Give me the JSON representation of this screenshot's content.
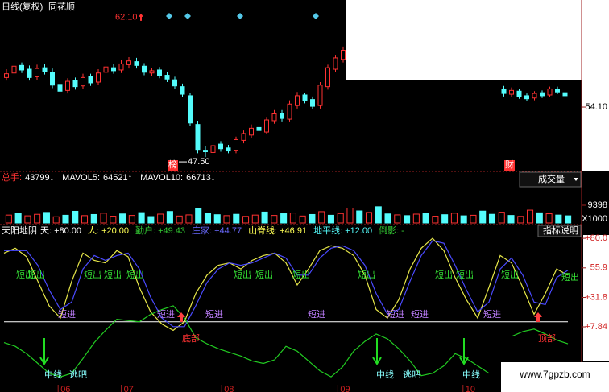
{
  "chart_data": [
    {
      "type": "candlestick",
      "title": "日线(复权)",
      "source": "同花顺",
      "x": [
        0,
        1,
        2,
        3,
        4,
        5,
        6,
        7,
        8,
        9,
        10,
        11,
        12,
        13,
        14,
        15,
        16,
        17,
        18,
        19,
        20,
        21,
        22,
        23,
        24,
        25,
        26,
        27,
        28,
        29,
        30,
        31,
        32,
        33,
        34,
        35,
        36,
        37,
        38,
        39,
        40,
        41,
        42,
        43,
        44,
        65,
        66,
        67,
        68,
        69,
        70,
        71,
        72,
        73
      ],
      "open": [
        58,
        58.6,
        59.6,
        59.1,
        58.1,
        59.3,
        58.7,
        57.1,
        56.3,
        57.6,
        56.9,
        58.1,
        57.4,
        58.7,
        59.3,
        59,
        59.7,
        60.1,
        59.5,
        58.6,
        59,
        58.3,
        57.7,
        56.8,
        55.6,
        51.8,
        48.4,
        48.1,
        49.2,
        48.7,
        48.4,
        49.7,
        50.4,
        51.4,
        50.8,
        52.3,
        53.3,
        52.5,
        54.3,
        55.7,
        55.1,
        54.3,
        56.8,
        59.1,
        60.4,
        56.5,
        55.8,
        56.2,
        55.6,
        55.3,
        56.0,
        55.7,
        56.4,
        56.0
      ],
      "close": [
        58.5,
        59.5,
        59,
        58,
        59.2,
        58.8,
        57,
        56.2,
        57.5,
        56.8,
        58,
        57.3,
        58.6,
        59.4,
        58.9,
        59.8,
        60.2,
        59.6,
        58.7,
        58.9,
        58.2,
        57.8,
        56.9,
        55.8,
        52,
        48.5,
        48.2,
        49,
        48.6,
        48.3,
        49.8,
        50.6,
        51.3,
        51,
        52.4,
        53.2,
        52.6,
        54.5,
        55.6,
        55,
        54.2,
        57,
        59.3,
        60.6,
        61.6,
        55.9,
        56.3,
        55.5,
        55.2,
        55.9,
        55.6,
        56.5,
        56.1,
        55.6
      ],
      "high": [
        59.1,
        60.1,
        60.0,
        59.6,
        59.7,
        59.8,
        59.2,
        57.6,
        57.9,
        58.0,
        58.5,
        58.5,
        59.1,
        59.9,
        59.8,
        60.3,
        60.7,
        60.6,
        59.9,
        59.3,
        59.4,
        58.7,
        58.1,
        57.2,
        56.0,
        52.3,
        49.0,
        49.5,
        49.6,
        49.1,
        50.2,
        51.0,
        51.8,
        51.8,
        52.8,
        53.7,
        53.7,
        55.0,
        56.1,
        56.0,
        55.5,
        57.4,
        59.7,
        61.0,
        62.1,
        56.9,
        56.7,
        56.5,
        55.9,
        56.2,
        56.3,
        56.8,
        56.8,
        56.3
      ],
      "low": [
        57.6,
        58.2,
        58.6,
        57.6,
        57.7,
        58.4,
        56.6,
        55.8,
        55.9,
        56.4,
        56.5,
        56.9,
        57.0,
        58.3,
        58.5,
        58.6,
        59.2,
        59.2,
        58.3,
        58.2,
        57.9,
        57.4,
        56.5,
        55.4,
        51.6,
        48.0,
        47.5,
        47.8,
        48.2,
        48.0,
        48.0,
        49.3,
        50.0,
        50.6,
        50.5,
        51.9,
        52.2,
        52.2,
        53.9,
        54.6,
        53.8,
        53.9,
        56.4,
        58.7,
        60.0,
        55.5,
        55.5,
        55.2,
        54.9,
        55.0,
        55.3,
        55.4,
        55.8,
        55.3
      ],
      "xlim": [
        0,
        74
      ],
      "ylim": [
        45.7,
        67.4
      ],
      "yticks": [
        {
          "value": 54.1,
          "label": "54.10"
        }
      ],
      "max_label": {
        "value": 62.1,
        "label": "62.10"
      },
      "min_label": {
        "value": 47.5,
        "label": "47.50"
      },
      "markers": [
        "榜",
        "财"
      ],
      "up_color": "#ff3232",
      "down_color": "#54fcfc"
    },
    {
      "type": "bar",
      "header": [
        {
          "label": "总手:",
          "value": "43799↓"
        },
        {
          "label": "MAVOL5:",
          "value": "64521↑"
        },
        {
          "label": "MAVOL10:",
          "value": "66713↓"
        }
      ],
      "selector": "成交量",
      "values": [
        4200,
        5100,
        3800,
        4600,
        5600,
        3300,
        4100,
        6200,
        3900,
        4500,
        5200,
        3600,
        4800,
        4000,
        5500,
        3400,
        4700,
        6100,
        3700,
        4300,
        7600,
        5200,
        4400,
        3900,
        4600,
        3500,
        4200,
        5800,
        4000,
        4900,
        5300,
        3700,
        4500,
        6000,
        4100,
        5000,
        7900,
        6400,
        5600,
        8600,
        4800,
        4300,
        3900,
        4700,
        5100,
        3600,
        4400,
        5200,
        3800,
        4100,
        6300,
        4600,
        5700,
        4000,
        3500,
        6800,
        5400,
        4900,
        4200,
        3800
      ],
      "colors": [
        "#ff3232",
        "#54fcfc",
        "#ff3232",
        "#ff3232",
        "#54fcfc",
        "#ff3232",
        "#54fcfc",
        "#54fcfc",
        "#ff3232",
        "#54fcfc",
        "#ff3232",
        "#ff3232",
        "#54fcfc",
        "#ff3232",
        "#54fcfc",
        "#54fcfc",
        "#ff3232",
        "#54fcfc",
        "#ff3232",
        "#ff3232",
        "#54fcfc",
        "#54fcfc",
        "#54fcfc",
        "#ff3232",
        "#54fcfc",
        "#ff3232",
        "#ff3232",
        "#54fcfc",
        "#ff3232",
        "#54fcfc",
        "#ff3232",
        "#ff3232",
        "#54fcfc",
        "#ff3232",
        "#54fcfc",
        "#ff3232",
        "#ff3232",
        "#54fcfc",
        "#ff3232",
        "#54fcfc",
        "#54fcfc",
        "#ff3232",
        "#54fcfc",
        "#ff3232",
        "#54fcfc",
        "#ff3232",
        "#54fcfc",
        "#ff3232",
        "#54fcfc",
        "#ff3232",
        "#54fcfc",
        "#54fcfc",
        "#ff3232",
        "#54fcfc",
        "#ff3232",
        "#ff3232",
        "#54fcfc",
        "#ff3232",
        "#54fcfc",
        "#54fcfc"
      ],
      "ylim": [
        0,
        15800
      ],
      "yticks": [
        9398
      ],
      "unit_label": "X1000"
    },
    {
      "type": "line",
      "title": "天阳地阴",
      "header": [
        {
          "label": "天:",
          "value": "+80.00",
          "color": "#ffffff"
        },
        {
          "label": "人:",
          "value": "+20.00",
          "color": "#ffff54"
        },
        {
          "label": "勤户:",
          "value": "+49.43",
          "color": "#33cc33"
        },
        {
          "label": "庄家:",
          "value": "+44.77",
          "color": "#6a6aff"
        },
        {
          "label": "山脊线:",
          "value": "+46.91",
          "color": "#ffff54"
        },
        {
          "label": "地平线:",
          "value": "+12.00",
          "color": "#54fcfc"
        },
        {
          "label": "倒影:",
          "value": "-",
          "color": "#33cc33"
        }
      ],
      "button": "指标说明",
      "x": [
        0,
        1,
        2,
        3,
        4,
        5,
        6,
        7,
        8,
        9,
        10,
        11,
        12,
        13,
        14,
        15,
        16,
        17,
        18,
        19,
        20,
        21,
        22,
        23,
        24,
        25,
        26,
        27,
        28,
        29,
        30,
        31,
        32,
        33,
        34,
        35,
        36,
        37,
        38,
        39,
        40,
        41,
        42,
        43,
        44,
        45,
        46,
        47,
        48,
        49,
        50
      ],
      "series": [
        {
          "color": "#e8e84a",
          "values": [
            68,
            72,
            65,
            45,
            25,
            15,
            45,
            68,
            62,
            60,
            70,
            65,
            40,
            20,
            10,
            5,
            12,
            35,
            50,
            58,
            60,
            55,
            62,
            66,
            68,
            60,
            42,
            55,
            70,
            74,
            72,
            66,
            50,
            22,
            15,
            30,
            55,
            72,
            80,
            70,
            48,
            30,
            15,
            40,
            66,
            60,
            40,
            18,
            35,
            55,
            50
          ]
        },
        {
          "color": "#4a4aff",
          "values": [
            70,
            70,
            70,
            58,
            38,
            22,
            28,
            55,
            66,
            62,
            66,
            68,
            55,
            32,
            15,
            8,
            8,
            25,
            44,
            55,
            60,
            58,
            60,
            64,
            68,
            64,
            50,
            50,
            64,
            72,
            74,
            70,
            58,
            35,
            18,
            22,
            45,
            66,
            78,
            76,
            58,
            38,
            20,
            28,
            55,
            64,
            50,
            28,
            26,
            48,
            54
          ]
        },
        {
          "color": "#22cc22",
          "values": [
            -5,
            -8,
            -14,
            -22,
            -30,
            -33,
            -30,
            -18,
            -5,
            5,
            14,
            13,
            12,
            18,
            22,
            25,
            15,
            -1,
            -6,
            -10,
            -13,
            -16,
            -20,
            -22,
            -19,
            -8,
            -12,
            -20,
            -28,
            -33,
            -25,
            -12,
            -4,
            2,
            -2,
            -10,
            -20,
            -32,
            -30,
            -24,
            -14,
            -18,
            -24,
            -30,
            null,
            0,
            4,
            6,
            2,
            -3,
            -6
          ]
        }
      ],
      "xlim": [
        0,
        50
      ],
      "ylim": [
        -44,
        84
      ],
      "yticks": [
        {
          "value": 80,
          "label": "+80.0"
        },
        55.9,
        {
          "value": 31.8,
          "label": "+31.8"
        },
        {
          "value": 7.84,
          "label": "+7.84"
        }
      ],
      "xticks": [
        {
          "value": 4.8,
          "label": "06"
        },
        {
          "value": 10.4,
          "label": "07"
        },
        {
          "value": 19.3,
          "label": "08"
        },
        {
          "value": 29.6,
          "label": "09"
        },
        {
          "value": 40.7,
          "label": "10"
        }
      ],
      "hlines": [
        20,
        12
      ],
      "annotations": [
        "短出",
        "短出",
        "短出",
        "短出",
        "短出",
        "短出",
        "短出",
        "短出",
        "短出",
        "短出",
        "短出",
        "短出",
        "短出",
        "短进",
        "短进",
        "短进",
        "短进",
        "短进",
        "短进",
        "短进",
        "中线",
        "逃吧",
        "中线",
        "逃吧",
        "中线",
        "底部",
        "顶部"
      ]
    }
  ],
  "watermark": "www.7gpzb.com"
}
